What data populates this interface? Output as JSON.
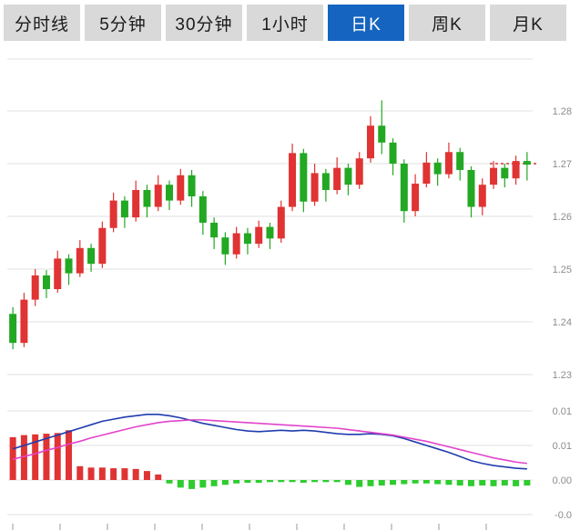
{
  "tabs": [
    {
      "label": "分时线",
      "active": false
    },
    {
      "label": "5分钟",
      "active": false
    },
    {
      "label": "30分钟",
      "active": false
    },
    {
      "label": "1小时",
      "active": false
    },
    {
      "label": "日K",
      "active": true
    },
    {
      "label": "周K",
      "active": false
    },
    {
      "label": "月K",
      "active": false
    }
  ],
  "colors": {
    "up": "#e03333",
    "down": "#22a822",
    "hist_down": "#2ecc2e",
    "tab_bg": "#d9d9d9",
    "tab_active_bg": "#1565c0",
    "tab_active_text": "#ffffff",
    "grid": "#e2e2e2",
    "axis_text": "#8c8c8c",
    "dif_line": "#1f3cae",
    "dea_line": "#e244cb",
    "price_line": "#d03333",
    "tick": "#999999"
  },
  "chart_data": {
    "type": "candlestick+macd",
    "title": "",
    "timeframe_selected": "日K",
    "price_axis_labels": [
      "1.28",
      "1.27",
      "1.26",
      "1.25",
      "1.24",
      "1.23"
    ],
    "price_axis_range": [
      1.2252,
      1.2898
    ],
    "macd_axis_labels": [
      "0.01",
      "0.01",
      "0.00",
      "-0.0"
    ],
    "current_price": 1.27,
    "grid": true,
    "candles": [
      [
        1.2415,
        1.2428,
        1.2348,
        1.236
      ],
      [
        1.236,
        1.2455,
        1.2352,
        1.2442
      ],
      [
        1.2442,
        1.25,
        1.243,
        1.2488
      ],
      [
        1.2488,
        1.2498,
        1.2445,
        1.2462
      ],
      [
        1.2462,
        1.2535,
        1.2455,
        1.252
      ],
      [
        1.252,
        1.2528,
        1.247,
        1.2492
      ],
      [
        1.2492,
        1.2555,
        1.2485,
        1.254
      ],
      [
        1.254,
        1.2548,
        1.2495,
        1.251
      ],
      [
        1.251,
        1.259,
        1.2502,
        1.2578
      ],
      [
        1.2578,
        1.2645,
        1.257,
        1.263
      ],
      [
        1.263,
        1.2638,
        1.2578,
        1.2598
      ],
      [
        1.2598,
        1.2668,
        1.259,
        1.265
      ],
      [
        1.265,
        1.266,
        1.2598,
        1.2618
      ],
      [
        1.2618,
        1.2678,
        1.261,
        1.266
      ],
      [
        1.266,
        1.2668,
        1.2612,
        1.263
      ],
      [
        1.263,
        1.269,
        1.2622,
        1.2678
      ],
      [
        1.2678,
        1.2688,
        1.2618,
        1.2638
      ],
      [
        1.2638,
        1.2648,
        1.2565,
        1.2588
      ],
      [
        1.2588,
        1.2598,
        1.2538,
        1.256
      ],
      [
        1.256,
        1.257,
        1.2508,
        1.2528
      ],
      [
        1.2528,
        1.258,
        1.252,
        1.2568
      ],
      [
        1.2568,
        1.2578,
        1.2528,
        1.2548
      ],
      [
        1.2548,
        1.2592,
        1.254,
        1.258
      ],
      [
        1.258,
        1.2588,
        1.2538,
        1.2558
      ],
      [
        1.2558,
        1.263,
        1.255,
        1.2618
      ],
      [
        1.2618,
        1.2738,
        1.261,
        1.272
      ],
      [
        1.272,
        1.2728,
        1.2608,
        1.2628
      ],
      [
        1.2628,
        1.27,
        1.262,
        1.2682
      ],
      [
        1.2682,
        1.269,
        1.2628,
        1.265
      ],
      [
        1.265,
        1.2712,
        1.2642,
        1.2692
      ],
      [
        1.2692,
        1.27,
        1.264,
        1.266
      ],
      [
        1.266,
        1.2722,
        1.2652,
        1.271
      ],
      [
        1.271,
        1.279,
        1.2702,
        1.2772
      ],
      [
        1.2772,
        1.282,
        1.2718,
        1.274
      ],
      [
        1.274,
        1.2748,
        1.2678,
        1.27
      ],
      [
        1.27,
        1.2708,
        1.2588,
        1.261
      ],
      [
        1.261,
        1.268,
        1.26,
        1.2662
      ],
      [
        1.2662,
        1.2722,
        1.2655,
        1.2702
      ],
      [
        1.2702,
        1.271,
        1.2658,
        1.268
      ],
      [
        1.268,
        1.274,
        1.2672,
        1.2722
      ],
      [
        1.2722,
        1.273,
        1.2668,
        1.2688
      ],
      [
        1.2688,
        1.2695,
        1.2598,
        1.2618
      ],
      [
        1.2618,
        1.2672,
        1.2602,
        1.266
      ],
      [
        1.266,
        1.2705,
        1.2652,
        1.2692
      ],
      [
        1.2692,
        1.27,
        1.2655,
        1.2672
      ],
      [
        1.2672,
        1.2715,
        1.266,
        1.2705
      ],
      [
        1.2705,
        1.2722,
        1.2668,
        1.2698
      ]
    ],
    "macd": {
      "hist": [
        0.0062,
        0.0065,
        0.0066,
        0.0067,
        0.0068,
        0.0072,
        0.002,
        0.0018,
        0.0018,
        0.0017,
        0.0017,
        0.0016,
        0.0013,
        0.0008,
        -0.0005,
        -0.0011,
        -0.0013,
        -0.0011,
        -0.0009,
        -0.0007,
        -0.0005,
        -0.0004,
        -0.0004,
        -0.0003,
        -0.0003,
        -0.0003,
        -0.0004,
        -0.0003,
        -0.0003,
        -0.0003,
        -0.0007,
        -0.001,
        -0.0009,
        -0.0008,
        -0.0007,
        -0.0006,
        -0.0005,
        -0.0005,
        -0.0006,
        -0.0007,
        -0.0008,
        -0.0009,
        -0.0008,
        -0.0009,
        -0.0008,
        -0.0009,
        -0.0008
      ],
      "dif": [
        0.0045,
        0.005,
        0.0055,
        0.006,
        0.0065,
        0.007,
        0.0075,
        0.008,
        0.0085,
        0.0088,
        0.0091,
        0.0093,
        0.0095,
        0.0095,
        0.0093,
        0.009,
        0.0086,
        0.0082,
        0.0079,
        0.0076,
        0.0073,
        0.0071,
        0.007,
        0.0071,
        0.0072,
        0.0071,
        0.0072,
        0.0071,
        0.0069,
        0.0067,
        0.0066,
        0.0066,
        0.0067,
        0.0066,
        0.0064,
        0.006,
        0.0055,
        0.005,
        0.0045,
        0.004,
        0.0034,
        0.0028,
        0.0024,
        0.0021,
        0.0019,
        0.0017,
        0.0016
      ],
      "dea": [
        0.003,
        0.0034,
        0.0038,
        0.0043,
        0.0047,
        0.0052,
        0.0056,
        0.0061,
        0.0065,
        0.0069,
        0.0073,
        0.0077,
        0.008,
        0.0083,
        0.0085,
        0.0086,
        0.0087,
        0.0087,
        0.0086,
        0.0085,
        0.0084,
        0.0083,
        0.0082,
        0.0081,
        0.008,
        0.0079,
        0.0078,
        0.0077,
        0.0076,
        0.0075,
        0.0073,
        0.0071,
        0.0069,
        0.0067,
        0.0065,
        0.0062,
        0.0059,
        0.0056,
        0.0052,
        0.0048,
        0.0044,
        0.004,
        0.0036,
        0.0032,
        0.0029,
        0.0026,
        0.0024
      ]
    }
  }
}
